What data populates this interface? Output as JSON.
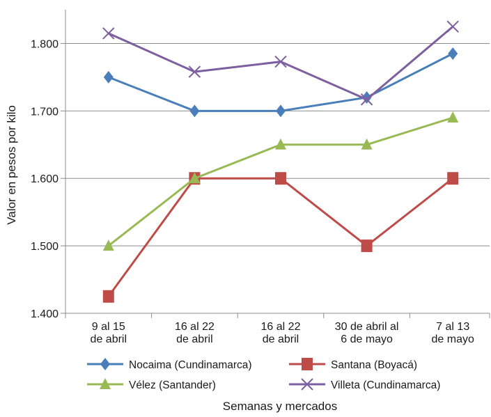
{
  "chart_data": {
    "type": "line",
    "ylabel": "Valor en pesos por kilo",
    "xlabel": "Semanas y mercados",
    "ylim": [
      1400,
      1850
    ],
    "yticks": [
      1400,
      1500,
      1600,
      1700,
      1800
    ],
    "ytick_labels": [
      "1.400",
      "1.500",
      "1.600",
      "1.700",
      "1.800"
    ],
    "grid": "horizontal",
    "legend_position": "bottom",
    "categories": [
      [
        "9 al 15",
        "de abril"
      ],
      [
        "16 al 22",
        "de abril"
      ],
      [
        "16 al 22",
        "de abril"
      ],
      [
        "30 de abril al",
        "6 de mayo"
      ],
      [
        "7 al 13",
        "de mayo"
      ]
    ],
    "series": [
      {
        "name": "Nocaima (Cundinamarca)",
        "color": "#4a7ebb",
        "marker": "diamond",
        "values": [
          1750,
          1700,
          1700,
          1720,
          1785
        ]
      },
      {
        "name": "Santana (Boyacá)",
        "color": "#be4b48",
        "marker": "square",
        "values": [
          1425,
          1600,
          1600,
          1500,
          1600
        ]
      },
      {
        "name": "Vélez (Santander)",
        "color": "#98b954",
        "marker": "triangle",
        "values": [
          1500,
          1600,
          1650,
          1650,
          1690
        ]
      },
      {
        "name": "Villeta (Cundinamarca)",
        "color": "#7d5fa0",
        "marker": "x",
        "values": [
          1815,
          1758,
          1773,
          1717,
          1825
        ]
      }
    ]
  }
}
